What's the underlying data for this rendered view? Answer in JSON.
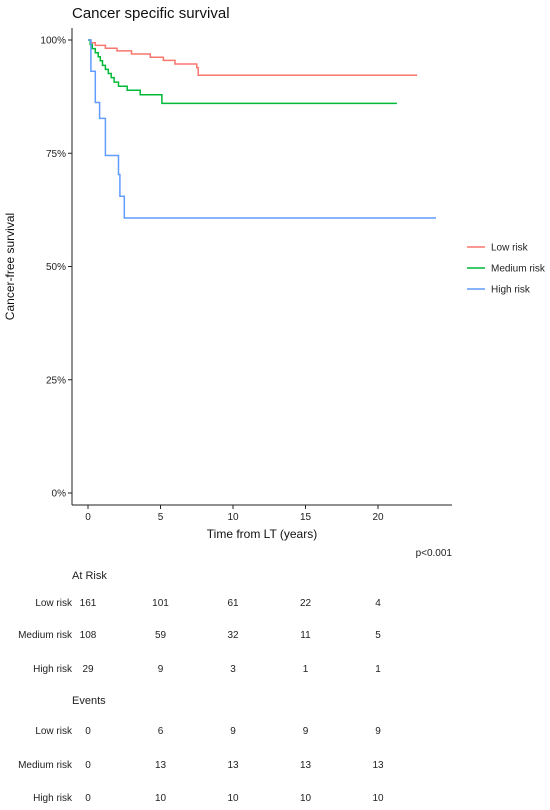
{
  "chart_data": {
    "type": "line",
    "title": "Cancer specific survival",
    "xlabel": "Time from LT (years)",
    "ylabel": "Cancer-free survival",
    "xlim": [
      -1,
      25
    ],
    "ylim": [
      0,
      1
    ],
    "x_ticks": [
      0,
      5,
      10,
      15,
      20
    ],
    "y_ticks": [
      {
        "value": 0,
        "label": "0%"
      },
      {
        "value": 0.25,
        "label": "25%"
      },
      {
        "value": 0.5,
        "label": "50%"
      },
      {
        "value": 0.75,
        "label": "75%"
      },
      {
        "value": 1,
        "label": "100%"
      }
    ],
    "grid": false,
    "legend_position": "right",
    "p_value": "p<0.001",
    "series": [
      {
        "name": "Low risk",
        "color": "#F8766D",
        "steps": [
          [
            0,
            1.0
          ],
          [
            0.2,
            0.994
          ],
          [
            0.5,
            0.988
          ],
          [
            1.2,
            0.982
          ],
          [
            2.0,
            0.976
          ],
          [
            3.0,
            0.969
          ],
          [
            4.3,
            0.962
          ],
          [
            5.2,
            0.955
          ],
          [
            6.0,
            0.947
          ],
          [
            7.5,
            0.939
          ],
          [
            7.6,
            0.922
          ],
          [
            22.7,
            0.922
          ]
        ]
      },
      {
        "name": "Medium risk",
        "color": "#00BA38",
        "steps": [
          [
            0,
            1.0
          ],
          [
            0.15,
            0.99
          ],
          [
            0.3,
            0.981
          ],
          [
            0.5,
            0.972
          ],
          [
            0.7,
            0.963
          ],
          [
            0.85,
            0.954
          ],
          [
            1.0,
            0.944
          ],
          [
            1.2,
            0.935
          ],
          [
            1.4,
            0.926
          ],
          [
            1.6,
            0.917
          ],
          [
            1.8,
            0.907
          ],
          [
            2.1,
            0.898
          ],
          [
            2.7,
            0.889
          ],
          [
            3.6,
            0.879
          ],
          [
            5.1,
            0.86
          ],
          [
            21.3,
            0.86
          ]
        ]
      },
      {
        "name": "High risk",
        "color": "#619CFF",
        "steps": [
          [
            0,
            1.0
          ],
          [
            0.2,
            0.931
          ],
          [
            0.5,
            0.862
          ],
          [
            0.8,
            0.827
          ],
          [
            1.2,
            0.745
          ],
          [
            2.1,
            0.703
          ],
          [
            2.2,
            0.655
          ],
          [
            2.5,
            0.607
          ],
          [
            24.0,
            0.607
          ]
        ]
      }
    ],
    "risk_table": {
      "at_risk_title": "At Risk",
      "events_title": "Events",
      "times": [
        0,
        5,
        10,
        15,
        20
      ],
      "at_risk": [
        {
          "name": "Low risk",
          "values": [
            "161",
            "101",
            "61",
            "22",
            "4"
          ]
        },
        {
          "name": "Medium risk",
          "values": [
            "108",
            "59",
            "32",
            "11",
            "5"
          ]
        },
        {
          "name": "High risk",
          "values": [
            "29",
            "9",
            "3",
            "1",
            "1"
          ]
        }
      ],
      "events": [
        {
          "name": "Low risk",
          "values": [
            "0",
            "6",
            "9",
            "9",
            "9"
          ]
        },
        {
          "name": "Medium risk",
          "values": [
            "0",
            "13",
            "13",
            "13",
            "13"
          ]
        },
        {
          "name": "High risk",
          "values": [
            "0",
            "10",
            "10",
            "10",
            "10"
          ]
        }
      ]
    }
  }
}
